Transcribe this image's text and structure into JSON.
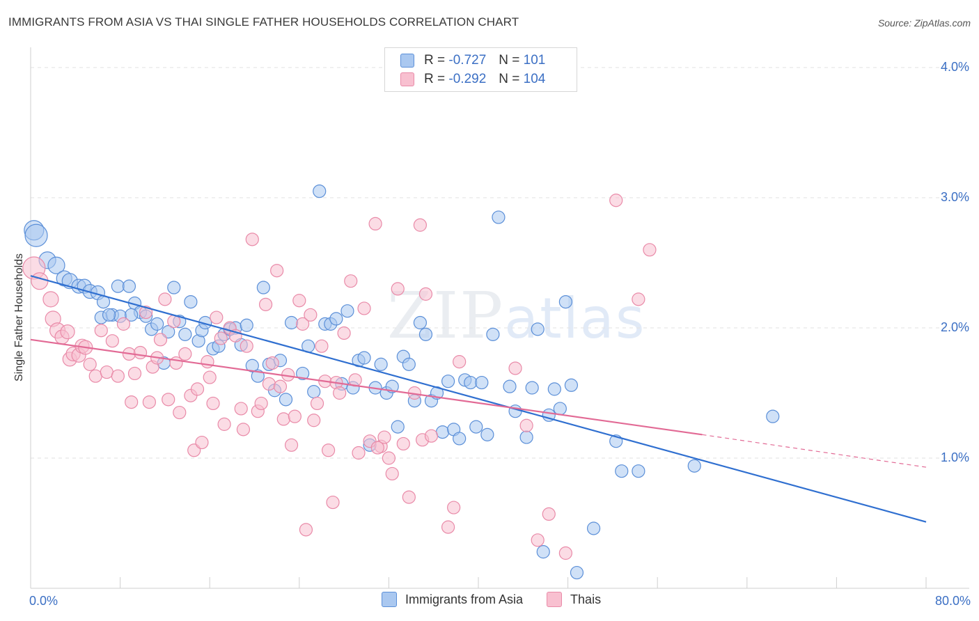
{
  "title": "IMMIGRANTS FROM ASIA VS THAI SINGLE FATHER HOUSEHOLDS CORRELATION CHART",
  "source": "Source: ZipAtlas.com",
  "watermark": {
    "zip": "ZIP",
    "atlas": "atlas"
  },
  "legend": {
    "rows": [
      {
        "r_label": "R =",
        "r_value": "-0.727",
        "n_label": "N =",
        "n_value": "101"
      },
      {
        "r_label": "R =",
        "r_value": "-0.292",
        "n_label": "N =",
        "n_value": "104"
      }
    ]
  },
  "colors": {
    "blue_fill": "#aac8f0",
    "blue_stroke": "#5b8fd8",
    "blue_line": "#2f6fd0",
    "pink_fill": "#f8c0d0",
    "pink_stroke": "#e98aa8",
    "pink_line": "#e26a95",
    "grid": "#e2e2e2",
    "axis_label": "#3b6fc4"
  },
  "chart_data": {
    "type": "scatter",
    "title": "IMMIGRANTS FROM ASIA VS THAI SINGLE FATHER HOUSEHOLDS CORRELATION CHART",
    "xlabel": "",
    "ylabel": "Single Father Households",
    "xlim": [
      0,
      80
    ],
    "ylim": [
      0,
      4.2
    ],
    "x_tick_labels": [
      "0.0%",
      "80.0%"
    ],
    "y_ticks": [
      1.0,
      2.0,
      3.0,
      4.0
    ],
    "y_tick_labels": [
      "1.0%",
      "2.0%",
      "3.0%",
      "4.0%"
    ],
    "grid": "horizontal dashed",
    "legend_position": "top-center",
    "series": [
      {
        "name": "Immigrants from Asia",
        "r": -0.727,
        "n": 101,
        "trend": {
          "x": [
            0,
            80
          ],
          "y": [
            2.4,
            0.51
          ]
        },
        "points": [
          [
            0.3,
            2.75,
            14
          ],
          [
            0.5,
            2.71,
            16
          ],
          [
            1.5,
            2.52,
            12
          ],
          [
            2.3,
            2.48,
            12
          ],
          [
            3.0,
            2.38,
            11
          ],
          [
            3.5,
            2.36,
            11
          ],
          [
            4.3,
            2.32,
            10
          ],
          [
            4.8,
            2.32,
            10
          ],
          [
            5.3,
            2.28,
            10
          ],
          [
            6.0,
            2.27,
            10
          ],
          [
            6.5,
            2.2,
            9
          ],
          [
            6.3,
            2.08,
            9
          ],
          [
            7.3,
            2.1,
            9
          ],
          [
            8.0,
            2.09,
            9
          ],
          [
            7.8,
            2.32,
            9
          ],
          [
            8.8,
            2.32,
            9
          ],
          [
            9.3,
            2.19,
            9
          ],
          [
            9.8,
            2.12,
            9
          ],
          [
            10.3,
            2.09,
            9
          ],
          [
            10.8,
            1.99,
            9
          ],
          [
            11.3,
            2.03,
            9
          ],
          [
            12.3,
            1.97,
            9
          ],
          [
            12.8,
            2.31,
            9
          ],
          [
            11.9,
            1.73,
            9
          ],
          [
            13.3,
            2.05,
            9
          ],
          [
            13.8,
            1.95,
            9
          ],
          [
            14.3,
            2.2,
            9
          ],
          [
            15.0,
            1.9,
            9
          ],
          [
            15.3,
            1.98,
            9
          ],
          [
            15.6,
            2.04,
            9
          ],
          [
            16.3,
            1.84,
            9
          ],
          [
            16.8,
            1.86,
            9
          ],
          [
            17.3,
            1.95,
            9
          ],
          [
            17.8,
            1.99,
            9
          ],
          [
            18.3,
            2.0,
            9
          ],
          [
            18.8,
            1.87,
            9
          ],
          [
            19.3,
            2.02,
            9
          ],
          [
            19.8,
            1.71,
            9
          ],
          [
            20.3,
            1.63,
            9
          ],
          [
            20.8,
            2.31,
            9
          ],
          [
            21.3,
            1.72,
            9
          ],
          [
            21.8,
            1.52,
            9
          ],
          [
            22.3,
            1.75,
            9
          ],
          [
            22.8,
            1.45,
            9
          ],
          [
            23.3,
            2.04,
            9
          ],
          [
            24.3,
            1.65,
            9
          ],
          [
            24.8,
            1.86,
            9
          ],
          [
            25.3,
            1.51,
            9
          ],
          [
            25.8,
            3.05,
            9
          ],
          [
            26.3,
            2.03,
            9
          ],
          [
            26.8,
            2.03,
            9
          ],
          [
            27.3,
            2.07,
            9
          ],
          [
            27.8,
            1.57,
            9
          ],
          [
            28.3,
            2.13,
            9
          ],
          [
            28.8,
            1.54,
            9
          ],
          [
            29.3,
            1.75,
            9
          ],
          [
            29.8,
            1.77,
            9
          ],
          [
            30.3,
            1.1,
            9
          ],
          [
            30.8,
            1.54,
            9
          ],
          [
            31.3,
            1.72,
            9
          ],
          [
            31.8,
            1.5,
            9
          ],
          [
            32.3,
            1.55,
            9
          ],
          [
            32.8,
            1.24,
            9
          ],
          [
            33.3,
            1.78,
            9
          ],
          [
            33.8,
            1.72,
            9
          ],
          [
            34.3,
            1.44,
            9
          ],
          [
            34.8,
            2.04,
            9
          ],
          [
            35.3,
            1.95,
            9
          ],
          [
            35.8,
            1.44,
            9
          ],
          [
            36.3,
            1.5,
            9
          ],
          [
            36.8,
            1.2,
            9
          ],
          [
            37.3,
            1.59,
            9
          ],
          [
            37.8,
            1.22,
            9
          ],
          [
            38.3,
            1.15,
            9
          ],
          [
            38.8,
            1.6,
            9
          ],
          [
            39.3,
            1.58,
            9
          ],
          [
            39.8,
            1.24,
            9
          ],
          [
            40.3,
            1.58,
            9
          ],
          [
            40.8,
            1.18,
            9
          ],
          [
            41.3,
            1.95,
            9
          ],
          [
            41.8,
            2.85,
            9
          ],
          [
            42.8,
            1.55,
            9
          ],
          [
            43.3,
            1.36,
            9
          ],
          [
            44.3,
            1.16,
            9
          ],
          [
            44.8,
            1.54,
            9
          ],
          [
            45.3,
            1.99,
            9
          ],
          [
            45.8,
            0.28,
            9
          ],
          [
            46.3,
            1.33,
            9
          ],
          [
            46.8,
            1.53,
            9
          ],
          [
            47.3,
            1.38,
            9
          ],
          [
            47.8,
            2.2,
            9
          ],
          [
            48.3,
            1.56,
            9
          ],
          [
            48.8,
            0.12,
            9
          ],
          [
            50.3,
            0.46,
            9
          ],
          [
            52.3,
            1.13,
            9
          ],
          [
            52.8,
            0.9,
            9
          ],
          [
            54.3,
            0.9,
            9
          ],
          [
            59.3,
            0.94,
            9
          ],
          [
            66.3,
            1.32,
            9
          ],
          [
            7.0,
            2.1,
            9
          ],
          [
            9.0,
            2.1,
            9
          ]
        ]
      },
      {
        "name": "Thais",
        "r": -0.292,
        "n": 104,
        "trend": {
          "x": [
            0,
            60
          ],
          "y": [
            1.91,
            1.18
          ]
        },
        "trend_dashed": {
          "x": [
            60,
            80
          ],
          "y": [
            1.18,
            0.93
          ]
        },
        "points": [
          [
            0.3,
            2.46,
            16
          ],
          [
            0.8,
            2.36,
            12
          ],
          [
            1.8,
            2.22,
            11
          ],
          [
            2.0,
            2.07,
            11
          ],
          [
            2.4,
            1.98,
            11
          ],
          [
            2.8,
            1.93,
            10
          ],
          [
            3.3,
            1.97,
            10
          ],
          [
            3.5,
            1.76,
            10
          ],
          [
            3.8,
            1.8,
            10
          ],
          [
            4.3,
            1.79,
            10
          ],
          [
            4.6,
            1.86,
            10
          ],
          [
            4.9,
            1.85,
            10
          ],
          [
            5.3,
            1.72,
            9
          ],
          [
            5.8,
            1.63,
            9
          ],
          [
            6.3,
            1.98,
            9
          ],
          [
            6.8,
            1.66,
            9
          ],
          [
            7.3,
            1.9,
            9
          ],
          [
            7.8,
            1.63,
            9
          ],
          [
            8.3,
            2.03,
            9
          ],
          [
            8.8,
            1.8,
            9
          ],
          [
            9.0,
            1.43,
            9
          ],
          [
            9.3,
            1.65,
            9
          ],
          [
            9.8,
            1.81,
            9
          ],
          [
            10.3,
            2.12,
            9
          ],
          [
            10.6,
            1.43,
            9
          ],
          [
            10.9,
            1.7,
            9
          ],
          [
            11.3,
            1.77,
            9
          ],
          [
            11.6,
            1.91,
            9
          ],
          [
            12.0,
            2.22,
            9
          ],
          [
            12.3,
            1.45,
            9
          ],
          [
            12.8,
            2.05,
            9
          ],
          [
            13.0,
            1.73,
            9
          ],
          [
            13.3,
            1.35,
            9
          ],
          [
            13.8,
            1.8,
            9
          ],
          [
            14.3,
            1.48,
            9
          ],
          [
            14.6,
            1.06,
            9
          ],
          [
            14.9,
            1.53,
            9
          ],
          [
            15.3,
            1.12,
            9
          ],
          [
            15.8,
            1.74,
            9
          ],
          [
            16.3,
            1.42,
            9
          ],
          [
            16.6,
            2.08,
            9
          ],
          [
            17.0,
            1.92,
            9
          ],
          [
            17.3,
            1.26,
            9
          ],
          [
            17.8,
            2.0,
            9
          ],
          [
            18.3,
            1.94,
            9
          ],
          [
            18.8,
            1.38,
            9
          ],
          [
            19.0,
            1.22,
            9
          ],
          [
            19.3,
            1.86,
            9
          ],
          [
            19.8,
            2.68,
            9
          ],
          [
            20.3,
            1.36,
            9
          ],
          [
            20.6,
            1.42,
            9
          ],
          [
            21.0,
            2.18,
            9
          ],
          [
            21.3,
            1.57,
            9
          ],
          [
            21.6,
            1.73,
            9
          ],
          [
            22.0,
            2.44,
            9
          ],
          [
            22.3,
            1.55,
            9
          ],
          [
            22.6,
            1.3,
            9
          ],
          [
            23.0,
            1.64,
            9
          ],
          [
            23.3,
            1.1,
            9
          ],
          [
            23.6,
            1.32,
            9
          ],
          [
            24.0,
            2.21,
            9
          ],
          [
            24.3,
            2.03,
            9
          ],
          [
            24.6,
            0.45,
            9
          ],
          [
            25.0,
            2.1,
            9
          ],
          [
            25.3,
            1.29,
            9
          ],
          [
            25.6,
            1.42,
            9
          ],
          [
            26.0,
            1.86,
            9
          ],
          [
            26.3,
            1.59,
            9
          ],
          [
            26.6,
            1.06,
            9
          ],
          [
            27.0,
            0.66,
            9
          ],
          [
            27.3,
            1.58,
            9
          ],
          [
            27.6,
            1.5,
            9
          ],
          [
            28.0,
            1.96,
            9
          ],
          [
            28.6,
            2.36,
            9
          ],
          [
            29.0,
            1.6,
            9
          ],
          [
            29.3,
            1.04,
            9
          ],
          [
            29.8,
            2.15,
            9
          ],
          [
            30.3,
            1.13,
            9
          ],
          [
            30.8,
            2.8,
            9
          ],
          [
            31.3,
            1.09,
            9
          ],
          [
            31.6,
            1.16,
            9
          ],
          [
            32.0,
            1.0,
            9
          ],
          [
            32.3,
            0.88,
            9
          ],
          [
            32.8,
            2.3,
            9
          ],
          [
            33.3,
            1.11,
            9
          ],
          [
            33.8,
            0.7,
            9
          ],
          [
            34.3,
            1.5,
            9
          ],
          [
            34.8,
            2.79,
            9
          ],
          [
            35.0,
            1.14,
            9
          ],
          [
            35.3,
            2.26,
            9
          ],
          [
            35.8,
            1.17,
            9
          ],
          [
            37.3,
            0.47,
            9
          ],
          [
            37.8,
            0.62,
            9
          ],
          [
            38.3,
            1.74,
            9
          ],
          [
            43.3,
            1.69,
            9
          ],
          [
            44.3,
            1.25,
            9
          ],
          [
            45.3,
            0.37,
            9
          ],
          [
            46.3,
            0.57,
            9
          ],
          [
            47.8,
            0.27,
            9
          ],
          [
            52.3,
            2.98,
            9
          ],
          [
            54.3,
            2.22,
            9
          ],
          [
            55.3,
            2.6,
            9
          ],
          [
            31.0,
            1.08,
            9
          ],
          [
            16.0,
            1.62,
            9
          ]
        ]
      }
    ]
  },
  "bottom_legend": {
    "items": [
      "Immigrants from Asia",
      "Thais"
    ]
  },
  "axis": {
    "x_min_label": "0.0%",
    "x_max_label": "80.0%",
    "y_title": "Single Father Households"
  }
}
